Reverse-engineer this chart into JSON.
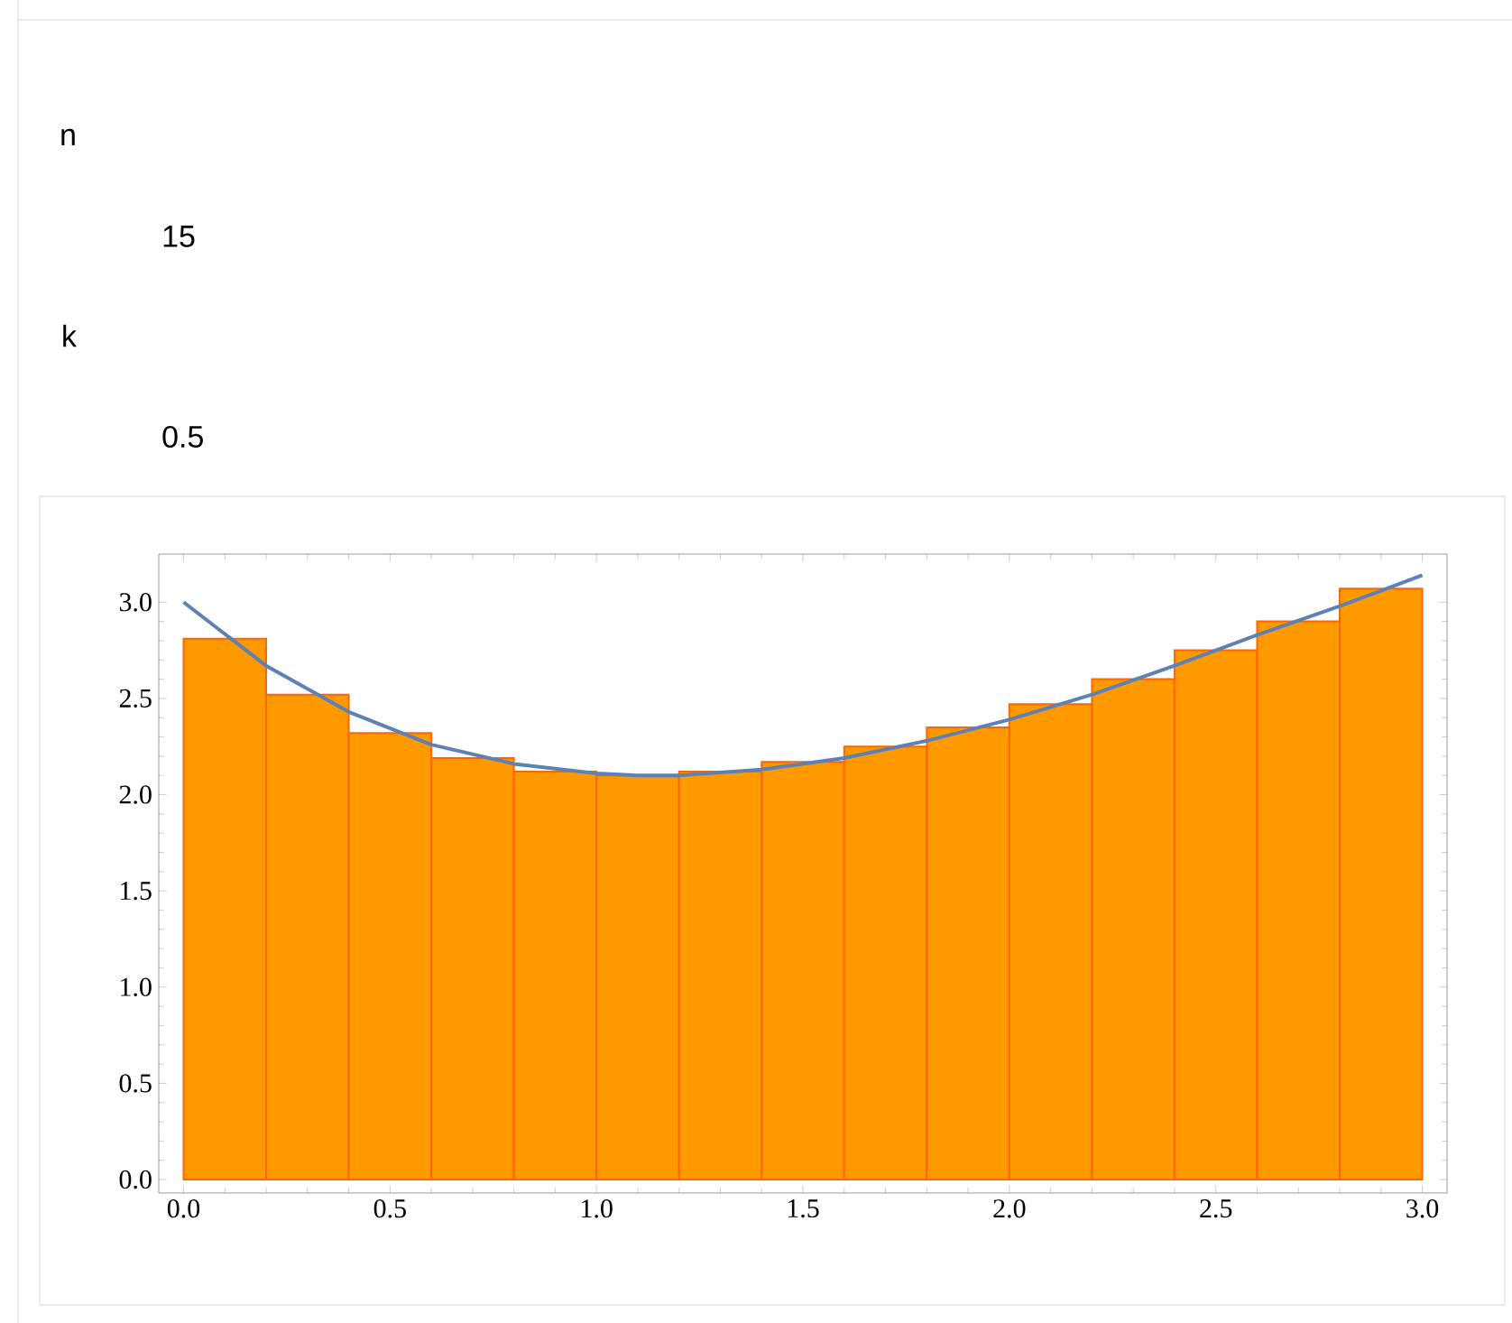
{
  "chart_data": {
    "type": "histogram",
    "bins": [
      0,
      0.2,
      0.4,
      0.6,
      0.8,
      1.0,
      1.2,
      1.4,
      1.6,
      1.8,
      2.0,
      2.2,
      2.4,
      2.6,
      2.8,
      3.0
    ],
    "values": [
      2.81,
      2.52,
      2.32,
      2.19,
      2.12,
      2.1,
      2.12,
      2.17,
      2.25,
      2.35,
      2.47,
      2.6,
      2.75,
      2.9,
      3.07
    ],
    "color": "#ff9900",
    "series": [
      {
        "type": "line",
        "color": "#5e81b5",
        "x": [
          0,
          0.2,
          0.4,
          0.6,
          0.8,
          1.0,
          1.1,
          1.2,
          1.4,
          1.6,
          1.8,
          2.0,
          2.2,
          2.4,
          2.6,
          2.8,
          3.0
        ],
        "values": [
          3.0,
          2.67,
          2.43,
          2.26,
          2.16,
          2.11,
          2.1,
          2.1,
          2.13,
          2.19,
          2.28,
          2.39,
          2.52,
          2.67,
          2.83,
          2.98,
          3.14
        ]
      }
    ],
    "xlim": [
      -0.06,
      3.06
    ],
    "ylim": [
      -0.07,
      3.25
    ],
    "xticks": [
      {
        "value": 0,
        "label": "0.0"
      },
      {
        "value": 0.5,
        "label": "0.5"
      },
      {
        "value": 1,
        "label": "1.0"
      },
      {
        "value": 1.5,
        "label": "1.5"
      },
      {
        "value": 2,
        "label": "2.0"
      },
      {
        "value": 2.5,
        "label": "2.5"
      },
      {
        "value": 3,
        "label": "3.0"
      }
    ],
    "yticks": [
      {
        "value": 0,
        "label": "0.0"
      },
      {
        "value": 0.5,
        "label": "0.5"
      },
      {
        "value": 1,
        "label": "1.0"
      },
      {
        "value": 1.5,
        "label": "1.5"
      },
      {
        "value": 2,
        "label": "2.0"
      },
      {
        "value": 2.5,
        "label": "2.5"
      },
      {
        "value": 3,
        "label": "3.0"
      }
    ],
    "annotations": [
      "n",
      "15",
      "k",
      "0.5"
    ]
  }
}
